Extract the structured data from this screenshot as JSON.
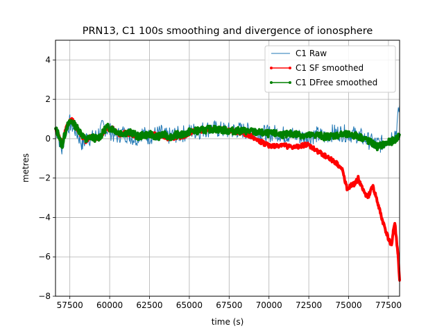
{
  "chart_data": {
    "type": "line",
    "title": "PRN13, C1 100s smoothing and divergence of ionosphere",
    "xlabel": "time (s)",
    "ylabel": "metres",
    "xlim": [
      56600,
      78200
    ],
    "ylim": [
      -8,
      5
    ],
    "xticks": [
      57500,
      60000,
      62500,
      65000,
      67500,
      70000,
      72500,
      75000,
      77500
    ],
    "yticks": [
      -8,
      -6,
      -4,
      -2,
      0,
      2,
      4
    ],
    "grid": true,
    "legend_position": "upper right",
    "series": [
      {
        "name": "C1 Raw",
        "color": "#1f77b4",
        "style": "line",
        "x": [
          56600,
          56800,
          57000,
          57200,
          57500,
          57800,
          58000,
          58300,
          58600,
          59000,
          59300,
          59600,
          60000,
          60400,
          60800,
          61200,
          61600,
          62000,
          62400,
          62800,
          63200,
          63600,
          64000,
          64400,
          64800,
          65200,
          65600,
          66000,
          66500,
          67000,
          67500,
          68000,
          68500,
          69000,
          69500,
          70000,
          70500,
          71000,
          71500,
          72000,
          72500,
          73000,
          73500,
          74000,
          74500,
          75000,
          75500,
          76000,
          76500,
          77000,
          77500,
          78000,
          78200
        ],
        "y": [
          0.6,
          0.1,
          -0.6,
          0.3,
          0.8,
          0.5,
          0.2,
          -0.3,
          0.1,
          0.0,
          0.3,
          0.6,
          0.4,
          0.1,
          0.3,
          0.2,
          0.0,
          0.3,
          0.1,
          0.2,
          0.3,
          0.1,
          0.2,
          0.2,
          0.3,
          0.4,
          0.4,
          0.5,
          0.5,
          0.45,
          0.4,
          0.45,
          0.4,
          0.35,
          0.3,
          0.25,
          0.3,
          0.2,
          0.2,
          0.1,
          0.1,
          0.2,
          0.1,
          0.3,
          0.3,
          0.25,
          0.2,
          0.0,
          -0.2,
          -0.3,
          0.0,
          0.4,
          1.7
        ]
      },
      {
        "name": "C1 SF smoothed",
        "color": "#ff0000",
        "style": "line-marker",
        "x": [
          56600,
          56800,
          57000,
          57300,
          57600,
          57900,
          58200,
          58500,
          58800,
          59200,
          59500,
          59800,
          60200,
          60600,
          61000,
          61400,
          61800,
          62200,
          62600,
          63000,
          63400,
          63800,
          64200,
          64600,
          65000,
          65500,
          66000,
          66500,
          67000,
          67500,
          68000,
          68500,
          69000,
          69300,
          69600,
          70000,
          70400,
          70800,
          71200,
          71600,
          72000,
          72400,
          72800,
          73200,
          73600,
          74000,
          74300,
          74600,
          74900,
          75100,
          75400,
          75600,
          75900,
          76200,
          76500,
          76700,
          76900,
          77100,
          77300,
          77500,
          77700,
          77800,
          77900,
          78000,
          78100,
          78200
        ],
        "y": [
          0.5,
          0.2,
          -0.3,
          0.6,
          1.0,
          0.6,
          0.2,
          -0.1,
          0.1,
          0.0,
          0.2,
          0.5,
          0.5,
          0.2,
          0.3,
          0.2,
          0.1,
          0.2,
          0.2,
          0.2,
          0.1,
          0.0,
          0.1,
          0.1,
          0.3,
          0.4,
          0.45,
          0.5,
          0.45,
          0.4,
          0.35,
          0.25,
          0.1,
          -0.1,
          -0.2,
          -0.35,
          -0.4,
          -0.3,
          -0.4,
          -0.45,
          -0.35,
          -0.3,
          -0.5,
          -0.7,
          -0.9,
          -1.1,
          -1.3,
          -1.6,
          -2.5,
          -2.4,
          -2.3,
          -2.0,
          -2.6,
          -3.0,
          -2.4,
          -2.9,
          -3.5,
          -4.1,
          -4.6,
          -5.1,
          -5.4,
          -4.7,
          -4.3,
          -5.1,
          -5.9,
          -7.2
        ]
      },
      {
        "name": "C1 DFree smoothed",
        "color": "#008000",
        "style": "line-marker",
        "x": [
          56600,
          56800,
          57000,
          57300,
          57600,
          57900,
          58200,
          58500,
          58800,
          59200,
          59500,
          59800,
          60200,
          60600,
          61000,
          61400,
          61800,
          62200,
          62600,
          63000,
          63400,
          63800,
          64200,
          64600,
          65000,
          65500,
          66000,
          66500,
          67000,
          67500,
          68000,
          68500,
          69000,
          69500,
          70000,
          70500,
          71000,
          71500,
          72000,
          72500,
          73000,
          73500,
          74000,
          74500,
          75000,
          75500,
          76000,
          76400,
          76800,
          77200,
          77500,
          77800,
          78000,
          78200
        ],
        "y": [
          0.5,
          0.2,
          -0.4,
          0.6,
          0.9,
          0.6,
          0.3,
          -0.1,
          0.1,
          0.0,
          0.2,
          0.6,
          0.5,
          0.3,
          0.3,
          0.3,
          0.1,
          0.2,
          0.2,
          0.1,
          0.2,
          0.1,
          0.2,
          0.2,
          0.35,
          0.4,
          0.45,
          0.5,
          0.45,
          0.4,
          0.4,
          0.4,
          0.35,
          0.3,
          0.25,
          0.25,
          0.2,
          0.25,
          0.2,
          0.15,
          0.2,
          0.1,
          0.15,
          0.2,
          0.2,
          0.15,
          0.0,
          -0.2,
          -0.4,
          -0.3,
          -0.2,
          -0.1,
          0.0,
          0.2
        ]
      }
    ]
  }
}
